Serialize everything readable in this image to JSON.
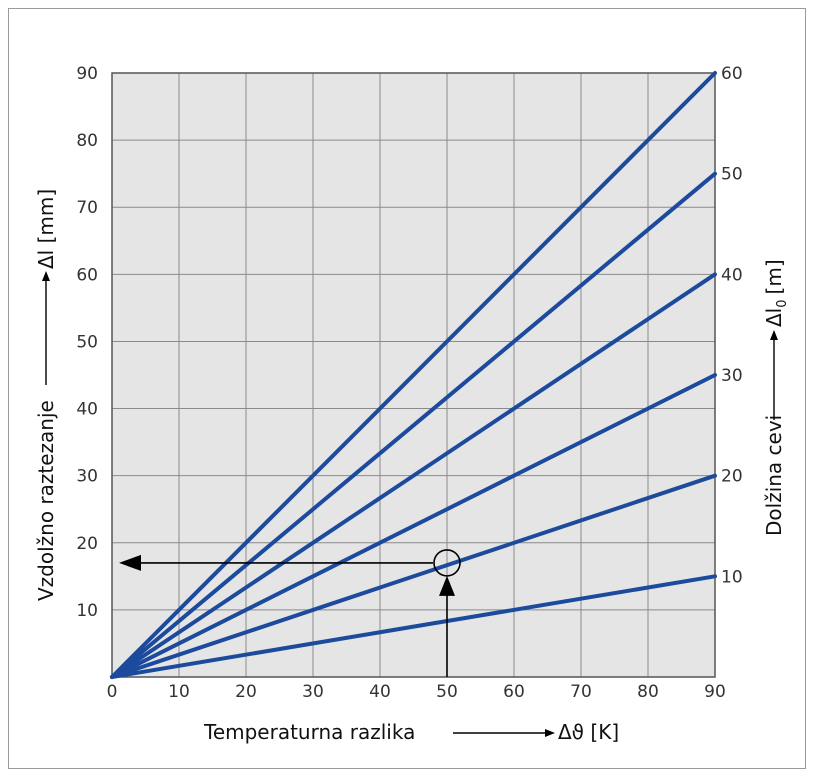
{
  "chart_data": {
    "type": "line",
    "xlabel": "Temperaturna razlika",
    "xsymbol": "Δϑ [K]",
    "ylabel": "Vzdolžno raztezanje",
    "ysymbol": "Δl [mm]",
    "y2label": "Dolžina cevi",
    "y2symbol": "Δl",
    "y2symbol_sub": "0",
    "y2symbol_unit": "[m]",
    "xlim": [
      0,
      90
    ],
    "ylim": [
      0,
      90
    ],
    "y2lim": [
      0,
      60
    ],
    "x_ticks": [
      "0",
      "10",
      "20",
      "30",
      "40",
      "50",
      "60",
      "70",
      "80",
      "90"
    ],
    "y_ticks": [
      "10",
      "20",
      "30",
      "40",
      "50",
      "60",
      "70",
      "80",
      "90"
    ],
    "y2_ticks": [
      "10",
      "20",
      "30",
      "40",
      "50",
      "60"
    ],
    "grid": true,
    "series": [
      {
        "pipe_length_m": 10,
        "x": [
          0,
          90
        ],
        "y": [
          0,
          15
        ]
      },
      {
        "pipe_length_m": 20,
        "x": [
          0,
          90
        ],
        "y": [
          0,
          30
        ]
      },
      {
        "pipe_length_m": 30,
        "x": [
          0,
          90
        ],
        "y": [
          0,
          45
        ]
      },
      {
        "pipe_length_m": 40,
        "x": [
          0,
          90
        ],
        "y": [
          0,
          60
        ]
      },
      {
        "pipe_length_m": 50,
        "x": [
          0,
          90
        ],
        "y": [
          0,
          75
        ]
      },
      {
        "pipe_length_m": 60,
        "x": [
          0,
          90
        ],
        "y": [
          0,
          90
        ]
      }
    ],
    "example": {
      "x": 50,
      "y": 17
    },
    "colors": {
      "series": "#1c4a9c",
      "plot_bg": "#e5e5e5",
      "grid": "#8a8a8a",
      "arrow": "#000000"
    }
  }
}
